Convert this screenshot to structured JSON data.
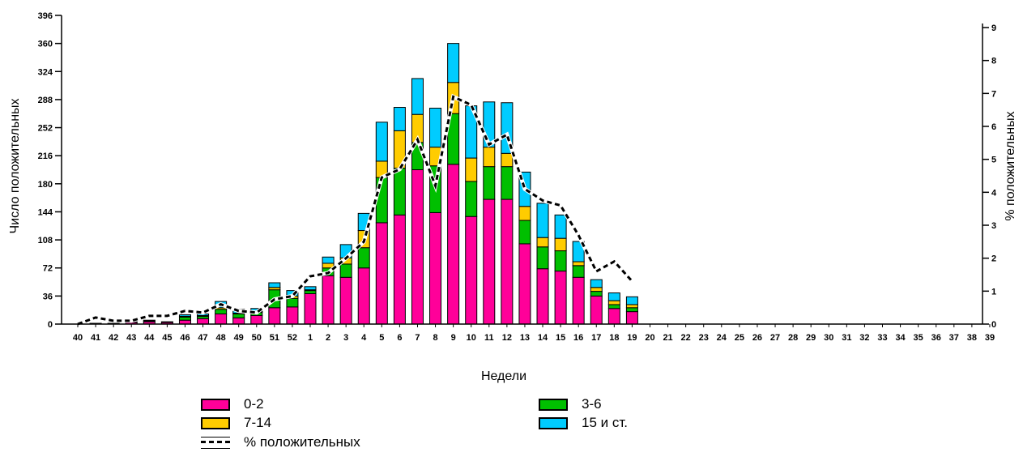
{
  "chart_data": {
    "type": "bar",
    "stacked": true,
    "xlabel": "Недели",
    "ylabel": "Число положительных",
    "y2label": "% положительных",
    "ylim": [
      0,
      396
    ],
    "y2lim": [
      0,
      9
    ],
    "yticks": [
      0,
      36,
      72,
      108,
      144,
      180,
      216,
      252,
      288,
      324,
      360,
      396
    ],
    "y2ticks": [
      0,
      1,
      2,
      3,
      4,
      5,
      6,
      7,
      8,
      9
    ],
    "categories": [
      "40",
      "41",
      "42",
      "43",
      "44",
      "45",
      "46",
      "47",
      "48",
      "49",
      "50",
      "51",
      "52",
      "1",
      "2",
      "3",
      "4",
      "5",
      "6",
      "7",
      "8",
      "9",
      "10",
      "11",
      "12",
      "13",
      "14",
      "15",
      "16",
      "17",
      "18",
      "19",
      "20",
      "21",
      "22",
      "23",
      "24",
      "25",
      "26",
      "27",
      "28",
      "29",
      "30",
      "31",
      "32",
      "33",
      "34",
      "35",
      "36",
      "37",
      "38",
      "39"
    ],
    "series": [
      {
        "name": "0-2",
        "color": "#ff0099",
        "values": [
          0,
          1,
          1,
          2,
          3,
          2,
          5,
          7,
          13,
          8,
          11,
          21,
          22,
          39,
          62,
          60,
          72,
          130,
          140,
          198,
          143,
          205,
          138,
          160,
          160,
          103,
          71,
          68,
          60,
          36,
          20,
          16,
          0,
          0,
          0,
          0,
          0,
          0,
          0,
          0,
          0,
          0,
          0,
          0,
          0,
          0,
          0,
          0,
          0,
          0,
          0,
          0
        ]
      },
      {
        "name": "3-6",
        "color": "#00bf00",
        "values": [
          0,
          0,
          0,
          1,
          1,
          0,
          4,
          3,
          6,
          5,
          4,
          23,
          11,
          4,
          10,
          17,
          26,
          58,
          60,
          35,
          60,
          65,
          45,
          42,
          42,
          30,
          28,
          26,
          15,
          6,
          5,
          5,
          0,
          0,
          0,
          0,
          0,
          0,
          0,
          0,
          0,
          0,
          0,
          0,
          0,
          0,
          0,
          0,
          0,
          0,
          0,
          0
        ]
      },
      {
        "name": "7-14",
        "color": "#ffcc00",
        "values": [
          0,
          0,
          0,
          0,
          0,
          0,
          1,
          1,
          2,
          1,
          1,
          3,
          3,
          1,
          6,
          8,
          22,
          21,
          48,
          36,
          24,
          40,
          30,
          25,
          17,
          18,
          12,
          16,
          5,
          5,
          5,
          4,
          0,
          0,
          0,
          0,
          0,
          0,
          0,
          0,
          0,
          0,
          0,
          0,
          0,
          0,
          0,
          0,
          0,
          0,
          0,
          0
        ]
      },
      {
        "name": "15 и ст.",
        "color": "#00ccff",
        "values": [
          0,
          0,
          0,
          0,
          1,
          1,
          2,
          2,
          8,
          5,
          4,
          6,
          7,
          4,
          8,
          17,
          22,
          50,
          30,
          46,
          50,
          50,
          67,
          58,
          65,
          44,
          44,
          30,
          26,
          10,
          10,
          10,
          0,
          0,
          0,
          0,
          0,
          0,
          0,
          0,
          0,
          0,
          0,
          0,
          0,
          0,
          0,
          0,
          0,
          0,
          0,
          0
        ]
      }
    ],
    "line_series": {
      "name": "% положительных",
      "axis": "right",
      "color": "#000000",
      "values": [
        0.0,
        0.2,
        0.1,
        0.1,
        0.25,
        0.25,
        0.4,
        0.35,
        0.6,
        0.4,
        0.35,
        0.75,
        0.85,
        1.45,
        1.55,
        2.0,
        2.5,
        4.45,
        4.7,
        5.6,
        4.2,
        6.9,
        6.65,
        5.45,
        5.75,
        4.1,
        3.75,
        3.6,
        2.7,
        1.6,
        1.9,
        1.3
      ]
    },
    "legend_position": "bottom",
    "grid": false
  },
  "legend": {
    "items": [
      {
        "label": "0-2",
        "color": "#ff0099"
      },
      {
        "label": "3-6",
        "color": "#00bf00"
      },
      {
        "label": "7-14",
        "color": "#ffcc00"
      },
      {
        "label": "15 и ст.",
        "color": "#00ccff"
      },
      {
        "label": "% положительных",
        "icon": "dashed-line"
      }
    ]
  }
}
